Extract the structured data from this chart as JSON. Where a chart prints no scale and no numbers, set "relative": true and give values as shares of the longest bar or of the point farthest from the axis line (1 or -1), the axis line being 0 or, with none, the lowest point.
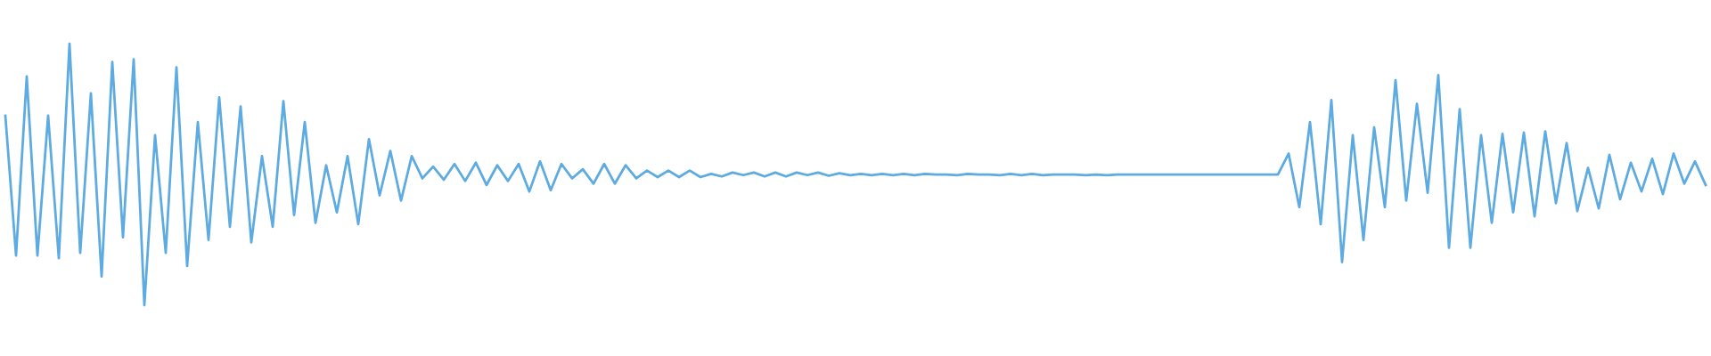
{
  "chart_data": {
    "type": "line",
    "relative": true,
    "categories": [
      null,
      null,
      null,
      null,
      null,
      null,
      null,
      null,
      null,
      null,
      null,
      null,
      null,
      null,
      null,
      null,
      null,
      null,
      null,
      null,
      null,
      null,
      null,
      null,
      null,
      null,
      null,
      null,
      null,
      null,
      null,
      null,
      null,
      null,
      null,
      null,
      null,
      null,
      null,
      null,
      null,
      null,
      null,
      null,
      null,
      null,
      null,
      null,
      null,
      null,
      null,
      null,
      null,
      null,
      null,
      null,
      null,
      null,
      null,
      null,
      null,
      null,
      null,
      null,
      null,
      null,
      null,
      null,
      null,
      null,
      null,
      null,
      null,
      null,
      null,
      null,
      null,
      null,
      null,
      null,
      null,
      null,
      null,
      null,
      null,
      null,
      null,
      null,
      null,
      null,
      null,
      null,
      null,
      null,
      null,
      null,
      null,
      null,
      null,
      null,
      null,
      null,
      null,
      null,
      null,
      null,
      null,
      null,
      null,
      null,
      null,
      null,
      null,
      null,
      null,
      null,
      null,
      null,
      null,
      null,
      null,
      null,
      null,
      null,
      null,
      null,
      null,
      null,
      null,
      null,
      null,
      null,
      null,
      null,
      null,
      null,
      null,
      null,
      null,
      null,
      null,
      null,
      null,
      null,
      null,
      null,
      null,
      null,
      null,
      null,
      null,
      null,
      null,
      null,
      null,
      null,
      null,
      null,
      null,
      null
    ],
    "series": [
      {
        "color": "#5eabe1",
        "values": [
          0.725,
          0.19,
          0.875,
          0.19,
          0.725,
          0.18,
          1.0,
          0.2,
          0.81,
          0.11,
          0.93,
          0.26,
          0.94,
          0,
          0.65,
          0.2,
          0.91,
          0.15,
          0.7,
          0.25,
          0.795,
          0.3,
          0.76,
          0.24,
          0.57,
          0.3,
          0.78,
          0.345,
          0.7,
          0.315,
          0.535,
          0.355,
          0.57,
          0.31,
          0.635,
          0.42,
          0.59,
          0.4,
          0.57,
          0.485,
          0.53,
          0.48,
          0.54,
          0.475,
          0.545,
          0.46,
          0.535,
          0.475,
          0.54,
          0.435,
          0.55,
          0.44,
          0.54,
          0.485,
          0.52,
          0.465,
          0.54,
          0.465,
          0.535,
          0.485,
          0.515,
          0.49,
          0.515,
          0.49,
          0.515,
          0.49,
          0.5025,
          0.4925,
          0.5075,
          0.4975,
          0.5075,
          0.4925,
          0.5075,
          0.4925,
          0.5075,
          0.4975,
          0.5075,
          0.495,
          0.505,
          0.4975,
          0.5025,
          0.4975,
          0.5025,
          0.4975,
          0.5025,
          0.4975,
          0.5025,
          0.5,
          0.5,
          0.4975,
          0.5025,
          0.5,
          0.5,
          0.4975,
          0.5025,
          0.4975,
          0.5025,
          0.4975,
          0.5,
          0.5,
          0.5,
          0.4975,
          0.5,
          0.4975,
          0.5,
          0.5,
          0.5,
          0.5,
          0.5,
          0.5,
          0.5,
          0.5,
          0.5,
          0.5,
          0.5,
          0.5,
          0.5,
          0.5,
          0.5,
          0.5,
          0.58,
          0.375,
          0.7,
          0.31,
          0.785,
          0.165,
          0.65,
          0.25,
          0.68,
          0.375,
          0.86,
          0.4,
          0.77,
          0.43,
          0.88,
          0.22,
          0.75,
          0.22,
          0.65,
          0.315,
          0.655,
          0.355,
          0.66,
          0.34,
          0.665,
          0.39,
          0.62,
          0.36,
          0.525,
          0.37,
          0.575,
          0.405,
          0.545,
          0.435,
          0.56,
          0.425,
          0.58,
          0.465,
          0.55,
          0.46
        ]
      }
    ]
  }
}
